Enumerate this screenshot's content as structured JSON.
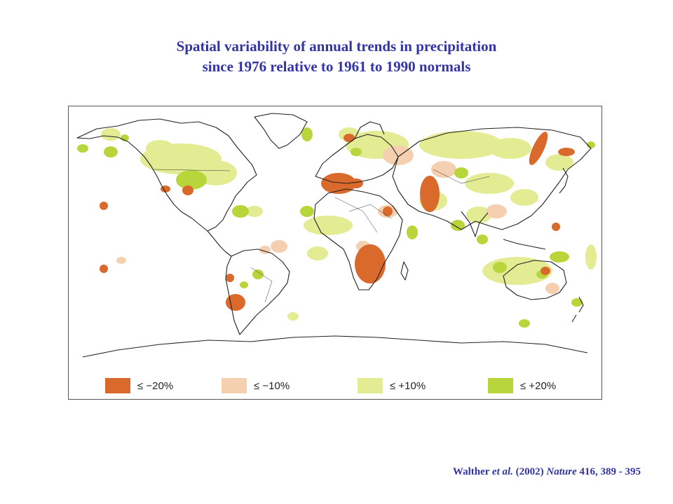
{
  "title": {
    "line1": "Spatial variability of annual trends in precipitation",
    "line2": "since 1976 relative to 1961 to 1990 normals"
  },
  "colors": {
    "strong_decrease": "#d96a2b",
    "weak_decrease": "#f4cfb0",
    "weak_increase": "#e3ec92",
    "strong_increase": "#b9d53c",
    "coastline": "#222222",
    "title_text": "#3333a6"
  },
  "legend": [
    {
      "label": "≤ −20%",
      "color": "#d96a2b"
    },
    {
      "label": "≤ −10%",
      "color": "#f4cfb0"
    },
    {
      "label": "≤ +10%",
      "color": "#e3ec92"
    },
    {
      "label": "≤ +20%",
      "color": "#b9d53c"
    }
  ],
  "citation": {
    "authors": "Walther",
    "etal": "et al.",
    "year": "(2002)",
    "journal": "Nature",
    "ref": "416, 389 - 395"
  }
}
